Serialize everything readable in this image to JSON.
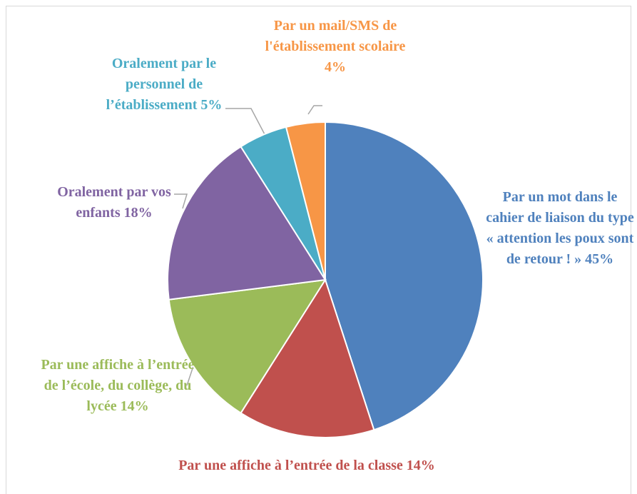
{
  "chart_data": {
    "type": "pie",
    "categories": [
      "Par un mot dans le cahier de liaison du type « attention les poux sont de retour ! »",
      "Par une affiche à l’entrée de la classe",
      "Par une affiche à l’entrée de l’école, du collège, du lycée",
      "Oralement par vos enfants",
      "Oralement par le personnel de l’établissement",
      "Par un mail/SMS de l'établissement scolaire"
    ],
    "values": [
      45,
      14,
      14,
      18,
      5,
      4
    ],
    "value_labels": [
      "45%",
      "14%",
      "14%",
      "18%",
      "5%",
      "4%"
    ],
    "colors": [
      "#4f81bd",
      "#c0504d",
      "#9bbb59",
      "#8064a2",
      "#4bacc6",
      "#f79646"
    ]
  }
}
